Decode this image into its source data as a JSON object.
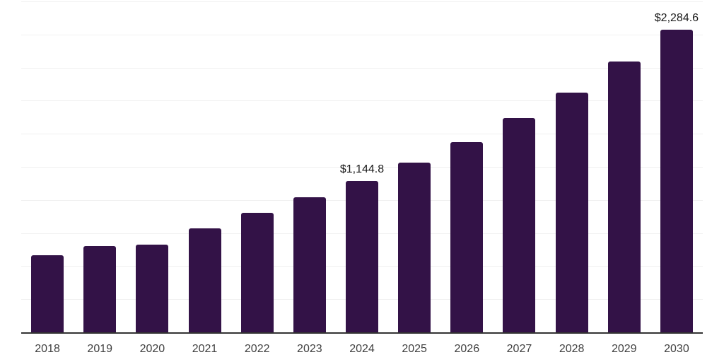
{
  "chart_data": {
    "type": "bar",
    "title": "",
    "xlabel": "",
    "ylabel": "",
    "categories": [
      "2018",
      "2019",
      "2020",
      "2021",
      "2022",
      "2023",
      "2024",
      "2025",
      "2026",
      "2027",
      "2028",
      "2029",
      "2030"
    ],
    "values": [
      580,
      652,
      665,
      783,
      905,
      1022,
      1144.8,
      1283,
      1438,
      1618,
      1810,
      2045,
      2284.6
    ],
    "data_labels": {
      "2024": "$1,144.8",
      "2030": "$2,284.6"
    },
    "ylim": [
      0,
      2500
    ],
    "gridline_interval": 250,
    "grid": "horizontal",
    "legend_position": "none",
    "y_axis_tick_labels_visible": false,
    "colors": {
      "bar": "#331247",
      "gridline": "#f0f0f0",
      "axis_line": "#333333",
      "data_label": "#1a1a1a",
      "tick_label": "#404040",
      "background": "#ffffff"
    }
  }
}
